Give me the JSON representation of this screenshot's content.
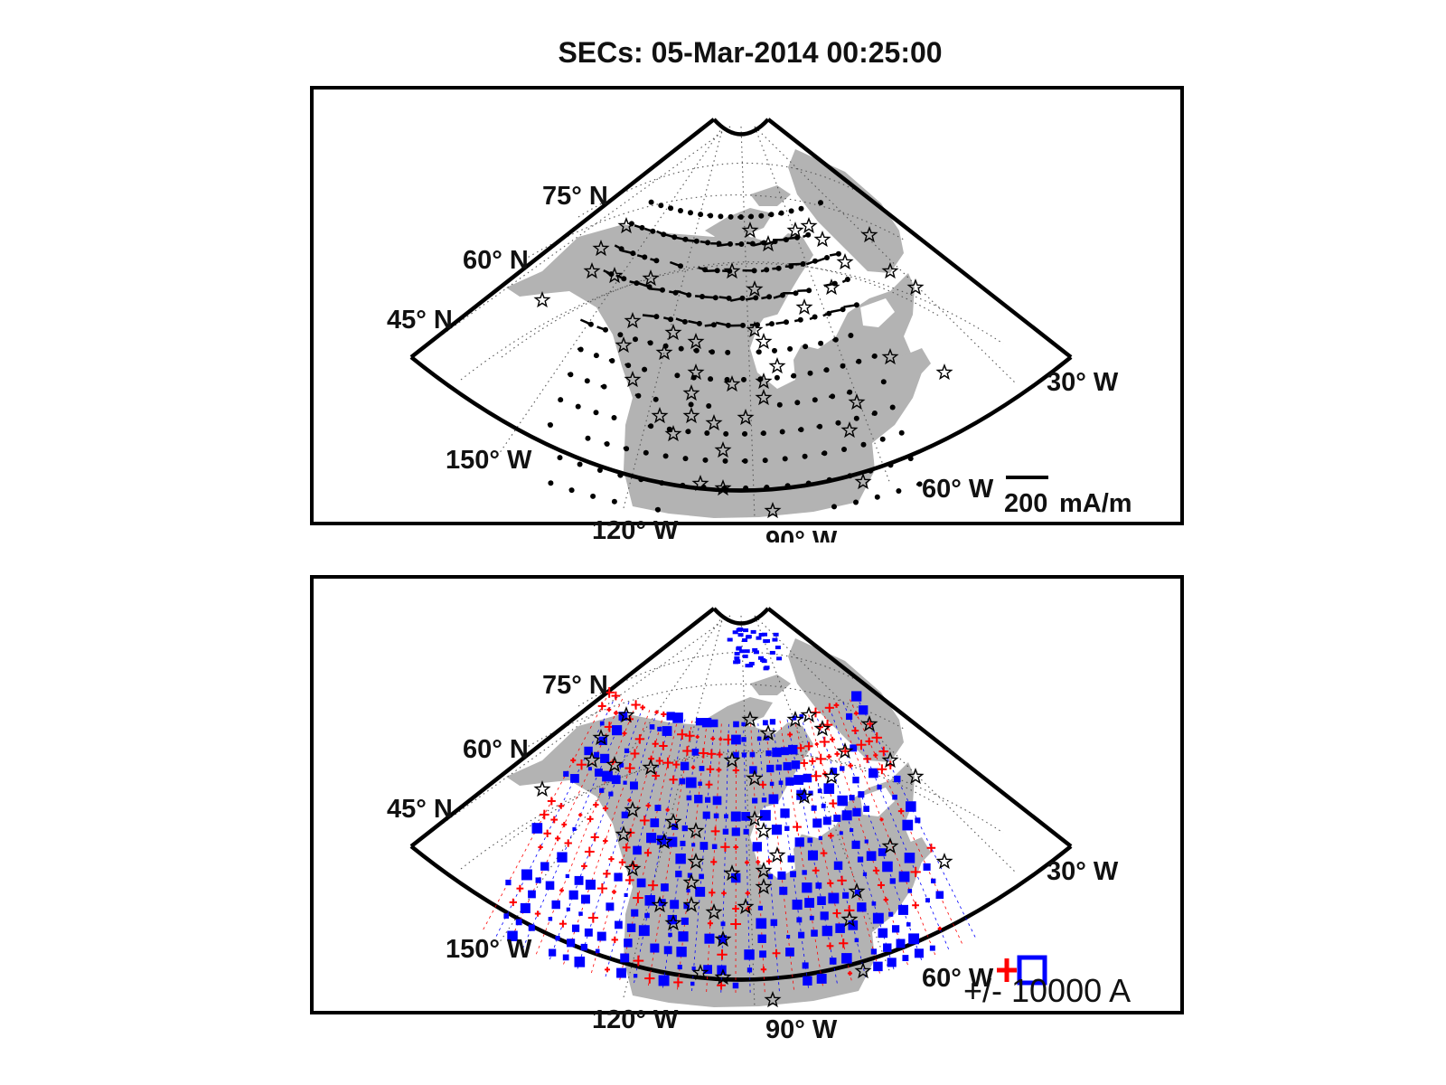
{
  "title": "SECs: 05-Mar-2014 00:25:00",
  "colors": {
    "land": "#b3b3b3",
    "frame": "#000000",
    "grid": "#555555",
    "positive": "#ff0000",
    "negative": "#0000ff",
    "marker": "#000000"
  },
  "labels": {
    "lat75": "75° N",
    "lat60": "60° N",
    "lat45": "45° N",
    "lon150": "150° W",
    "lon120": "120° W",
    "lon90": "90° W",
    "lon60": "60° W",
    "lon30": "30° W"
  },
  "top_panel": {
    "scale_value": "200",
    "scale_unit": "mA/m",
    "markers": {
      "dots": "horizontal equivalent currents (black vectors)",
      "stars": "magnetometer stations"
    }
  },
  "bottom_panel": {
    "legend_text": "+/- 10000 A",
    "positive_symbol": "plus",
    "negative_symbol": "square"
  },
  "icons": {
    "station": "star-icon",
    "positive": "plus-icon",
    "negative": "square-icon"
  }
}
